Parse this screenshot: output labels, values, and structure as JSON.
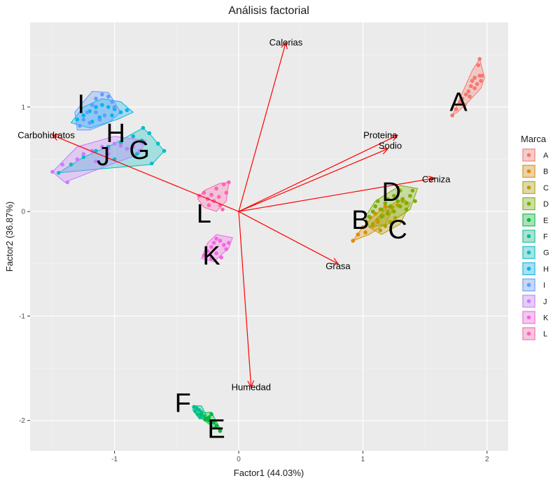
{
  "chart_data": {
    "type": "scatter",
    "title": "Análisis factorial",
    "xlabel": "Factor1 (44.03%)",
    "ylabel": "Factor2 (36.87%)",
    "xlim": [
      -1.68,
      2.17
    ],
    "ylim": [
      -2.29,
      1.81
    ],
    "xticks": [
      -1,
      0,
      1,
      2
    ],
    "yticks": [
      -2,
      -1,
      0,
      1
    ],
    "grid": true,
    "legend": {
      "title": "Marca",
      "position": "right",
      "entries": [
        "A",
        "B",
        "C",
        "D",
        "E",
        "F",
        "G",
        "H",
        "I",
        "J",
        "K",
        "L"
      ]
    },
    "groups": [
      {
        "name": "A",
        "color": "#F8766D",
        "label_at": [
          1.77,
          1.05
        ],
        "hull": [
          [
            1.72,
            0.92
          ],
          [
            1.78,
            1.08
          ],
          [
            1.88,
            1.35
          ],
          [
            1.94,
            1.46
          ],
          [
            1.98,
            1.28
          ],
          [
            1.95,
            1.18
          ],
          [
            1.85,
            1.05
          ],
          [
            1.76,
            0.95
          ]
        ],
        "points": [
          [
            1.72,
            0.92
          ],
          [
            1.75,
            0.98
          ],
          [
            1.78,
            1.05
          ],
          [
            1.8,
            1.08
          ],
          [
            1.83,
            1.12
          ],
          [
            1.85,
            1.15
          ],
          [
            1.87,
            1.2
          ],
          [
            1.88,
            1.25
          ],
          [
            1.9,
            1.28
          ],
          [
            1.92,
            1.22
          ],
          [
            1.94,
            1.3
          ],
          [
            1.95,
            1.25
          ],
          [
            1.96,
            1.3
          ],
          [
            1.93,
            1.4
          ],
          [
            1.94,
            1.46
          ],
          [
            1.86,
            1.1
          ],
          [
            1.82,
            1.02
          ],
          [
            1.9,
            1.18
          ]
        ]
      },
      {
        "name": "B",
        "color": "#DE8C00",
        "label_at": [
          0.98,
          -0.08
        ],
        "hull": [
          [
            0.92,
            -0.28
          ],
          [
            0.98,
            -0.18
          ],
          [
            1.08,
            -0.05
          ],
          [
            1.18,
            0.05
          ],
          [
            1.24,
            0.02
          ],
          [
            1.18,
            -0.12
          ],
          [
            1.05,
            -0.22
          ]
        ],
        "points": [
          [
            0.92,
            -0.28
          ],
          [
            0.96,
            -0.22
          ],
          [
            1.0,
            -0.15
          ],
          [
            1.03,
            -0.1
          ],
          [
            1.06,
            -0.06
          ],
          [
            1.1,
            -0.02
          ],
          [
            1.14,
            0.02
          ],
          [
            1.18,
            0.05
          ],
          [
            1.08,
            -0.14
          ],
          [
            1.12,
            -0.1
          ],
          [
            1.02,
            -0.2
          ],
          [
            1.16,
            -0.04
          ]
        ]
      },
      {
        "name": "C",
        "color": "#B79F00",
        "label_at": [
          1.28,
          -0.17
        ],
        "hull": [
          [
            1.05,
            -0.15
          ],
          [
            1.2,
            0.05
          ],
          [
            1.32,
            0.12
          ],
          [
            1.38,
            0.08
          ],
          [
            1.3,
            -0.12
          ],
          [
            1.15,
            -0.22
          ]
        ],
        "points": [
          [
            1.08,
            -0.12
          ],
          [
            1.12,
            -0.08
          ],
          [
            1.16,
            -0.04
          ],
          [
            1.2,
            0.0
          ],
          [
            1.24,
            0.04
          ],
          [
            1.28,
            0.06
          ],
          [
            1.32,
            0.1
          ],
          [
            1.22,
            -0.1
          ],
          [
            1.18,
            -0.14
          ],
          [
            1.26,
            -0.06
          ],
          [
            1.14,
            -0.18
          ]
        ]
      },
      {
        "name": "D",
        "color": "#7CAE00",
        "label_at": [
          1.23,
          0.19
        ],
        "hull": [
          [
            1.02,
            -0.05
          ],
          [
            1.1,
            0.1
          ],
          [
            1.3,
            0.25
          ],
          [
            1.44,
            0.22
          ],
          [
            1.38,
            0.02
          ],
          [
            1.2,
            -0.12
          ],
          [
            1.05,
            -0.15
          ]
        ],
        "points": [
          [
            1.05,
            -0.05
          ],
          [
            1.08,
            0.0
          ],
          [
            1.1,
            0.05
          ],
          [
            1.12,
            0.1
          ],
          [
            1.15,
            0.02
          ],
          [
            1.18,
            0.08
          ],
          [
            1.2,
            0.12
          ],
          [
            1.22,
            0.05
          ],
          [
            1.25,
            0.15
          ],
          [
            1.28,
            0.1
          ],
          [
            1.3,
            0.2
          ],
          [
            1.32,
            0.12
          ],
          [
            1.35,
            0.08
          ],
          [
            1.38,
            0.15
          ],
          [
            1.4,
            0.2
          ],
          [
            1.42,
            0.1
          ],
          [
            1.15,
            -0.05
          ],
          [
            1.2,
            -0.02
          ],
          [
            1.25,
            0.0
          ],
          [
            1.3,
            0.05
          ],
          [
            1.35,
            0.02
          ]
        ]
      },
      {
        "name": "E",
        "color": "#00BA38",
        "label_at": [
          -0.18,
          -2.08
        ],
        "hull": [
          [
            -0.32,
            -1.93
          ],
          [
            -0.22,
            -1.92
          ],
          [
            -0.14,
            -2.1
          ],
          [
            -0.22,
            -2.05
          ],
          [
            -0.3,
            -1.98
          ]
        ],
        "points": [
          [
            -0.3,
            -1.95
          ],
          [
            -0.28,
            -1.96
          ],
          [
            -0.26,
            -1.98
          ],
          [
            -0.24,
            -1.97
          ],
          [
            -0.22,
            -1.94
          ],
          [
            -0.24,
            -2.0
          ],
          [
            -0.2,
            -2.02
          ],
          [
            -0.18,
            -2.05
          ],
          [
            -0.15,
            -2.1
          ],
          [
            -0.27,
            -1.99
          ]
        ]
      },
      {
        "name": "F",
        "color": "#00C08B",
        "label_at": [
          -0.45,
          -1.83
        ],
        "hull": [
          [
            -0.36,
            -1.86
          ],
          [
            -0.3,
            -1.86
          ],
          [
            -0.26,
            -1.95
          ],
          [
            -0.32,
            -1.98
          ],
          [
            -0.37,
            -1.9
          ]
        ],
        "points": [
          [
            -0.36,
            -1.87
          ],
          [
            -0.34,
            -1.88
          ],
          [
            -0.32,
            -1.9
          ],
          [
            -0.3,
            -1.92
          ],
          [
            -0.33,
            -1.94
          ],
          [
            -0.29,
            -1.96
          ],
          [
            -0.31,
            -1.97
          ],
          [
            -0.35,
            -1.91
          ]
        ]
      },
      {
        "name": "G",
        "color": "#00BFC4",
        "label_at": [
          -0.8,
          0.59
        ],
        "hull": [
          [
            -1.45,
            0.37
          ],
          [
            -1.25,
            0.52
          ],
          [
            -1.0,
            0.65
          ],
          [
            -0.77,
            0.8
          ],
          [
            -0.7,
            0.72
          ],
          [
            -0.6,
            0.58
          ],
          [
            -0.7,
            0.45
          ],
          [
            -1.0,
            0.42
          ]
        ],
        "points": [
          [
            -1.45,
            0.37
          ],
          [
            -1.35,
            0.45
          ],
          [
            -1.25,
            0.52
          ],
          [
            -1.15,
            0.58
          ],
          [
            -1.05,
            0.62
          ],
          [
            -0.95,
            0.66
          ],
          [
            -0.85,
            0.72
          ],
          [
            -0.77,
            0.8
          ],
          [
            -0.72,
            0.75
          ],
          [
            -0.65,
            0.65
          ],
          [
            -0.6,
            0.58
          ],
          [
            -0.7,
            0.46
          ],
          [
            -0.82,
            0.55
          ],
          [
            -0.9,
            0.6
          ],
          [
            -1.0,
            0.5
          ],
          [
            -0.78,
            0.68
          ]
        ]
      },
      {
        "name": "H",
        "color": "#00B4F0",
        "label_at": [
          -0.99,
          0.75
        ],
        "hull": [
          [
            -1.35,
            0.85
          ],
          [
            -1.25,
            1.0
          ],
          [
            -1.1,
            1.08
          ],
          [
            -0.95,
            1.05
          ],
          [
            -0.85,
            0.95
          ],
          [
            -0.98,
            0.88
          ],
          [
            -1.2,
            0.8
          ]
        ],
        "points": [
          [
            -1.3,
            0.88
          ],
          [
            -1.25,
            0.92
          ],
          [
            -1.2,
            0.96
          ],
          [
            -1.15,
            1.0
          ],
          [
            -1.1,
            1.02
          ],
          [
            -1.05,
            1.0
          ],
          [
            -1.0,
            0.98
          ],
          [
            -0.95,
            0.95
          ],
          [
            -0.9,
            0.97
          ],
          [
            -1.12,
            0.9
          ],
          [
            -1.18,
            0.86
          ],
          [
            -1.02,
            0.92
          ]
        ]
      },
      {
        "name": "I",
        "color": "#619CFF",
        "label_at": [
          -1.27,
          1.03
        ],
        "hull": [
          [
            -1.3,
            0.78
          ],
          [
            -1.32,
            0.95
          ],
          [
            -1.18,
            1.15
          ],
          [
            -1.05,
            1.14
          ],
          [
            -0.95,
            0.95
          ],
          [
            -1.05,
            0.85
          ],
          [
            -1.2,
            0.78
          ]
        ],
        "points": [
          [
            -1.28,
            0.82
          ],
          [
            -1.25,
            0.88
          ],
          [
            -1.22,
            0.95
          ],
          [
            -1.18,
            1.02
          ],
          [
            -1.15,
            1.08
          ],
          [
            -1.1,
            1.12
          ],
          [
            -1.05,
            1.1
          ],
          [
            -1.0,
            1.0
          ],
          [
            -1.08,
            0.92
          ],
          [
            -1.12,
            0.88
          ],
          [
            -1.2,
            0.85
          ],
          [
            -1.15,
            0.95
          ],
          [
            -1.02,
            1.05
          ]
        ]
      },
      {
        "name": "J",
        "color": "#C77CFF",
        "label_at": [
          -1.09,
          0.53
        ],
        "hull": [
          [
            -1.5,
            0.38
          ],
          [
            -1.4,
            0.28
          ],
          [
            -1.1,
            0.42
          ],
          [
            -0.8,
            0.55
          ],
          [
            -0.75,
            0.68
          ],
          [
            -1.0,
            0.72
          ],
          [
            -1.3,
            0.62
          ]
        ],
        "points": [
          [
            -1.5,
            0.38
          ],
          [
            -1.42,
            0.45
          ],
          [
            -1.38,
            0.28
          ],
          [
            -1.3,
            0.5
          ],
          [
            -1.25,
            0.55
          ],
          [
            -1.18,
            0.58
          ],
          [
            -1.1,
            0.62
          ],
          [
            -1.05,
            0.6
          ],
          [
            -1.0,
            0.65
          ],
          [
            -0.95,
            0.63
          ],
          [
            -0.9,
            0.6
          ],
          [
            -0.85,
            0.62
          ],
          [
            -0.8,
            0.58
          ],
          [
            -0.78,
            0.66
          ],
          [
            -1.15,
            0.48
          ],
          [
            -1.05,
            0.55
          ]
        ]
      },
      {
        "name": "K",
        "color": "#F564E3",
        "label_at": [
          -0.22,
          -0.42
        ],
        "hull": [
          [
            -0.3,
            -0.45
          ],
          [
            -0.25,
            -0.3
          ],
          [
            -0.18,
            -0.22
          ],
          [
            -0.05,
            -0.25
          ],
          [
            -0.08,
            -0.35
          ],
          [
            -0.2,
            -0.48
          ]
        ],
        "points": [
          [
            -0.28,
            -0.42
          ],
          [
            -0.25,
            -0.38
          ],
          [
            -0.22,
            -0.34
          ],
          [
            -0.2,
            -0.3
          ],
          [
            -0.18,
            -0.26
          ],
          [
            -0.15,
            -0.28
          ],
          [
            -0.12,
            -0.32
          ],
          [
            -0.1,
            -0.36
          ],
          [
            -0.08,
            -0.3
          ],
          [
            -0.18,
            -0.4
          ],
          [
            -0.14,
            -0.44
          ],
          [
            -0.22,
            -0.45
          ]
        ]
      },
      {
        "name": "L",
        "color": "#FF64B0",
        "label_at": [
          -0.28,
          -0.02
        ],
        "hull": [
          [
            -0.33,
            0.12
          ],
          [
            -0.28,
            0.2
          ],
          [
            -0.15,
            0.27
          ],
          [
            -0.08,
            0.28
          ],
          [
            -0.1,
            0.1
          ],
          [
            -0.18,
            0.0
          ],
          [
            -0.28,
            0.04
          ]
        ],
        "points": [
          [
            -0.32,
            0.15
          ],
          [
            -0.28,
            0.18
          ],
          [
            -0.25,
            0.12
          ],
          [
            -0.22,
            0.16
          ],
          [
            -0.2,
            0.1
          ],
          [
            -0.18,
            0.22
          ],
          [
            -0.16,
            0.14
          ],
          [
            -0.15,
            0.06
          ],
          [
            -0.12,
            0.26
          ],
          [
            -0.1,
            0.18
          ],
          [
            -0.08,
            0.28
          ],
          [
            -0.13,
            0.02
          ],
          [
            -0.24,
            0.06
          ]
        ]
      }
    ],
    "vectors": [
      {
        "name": "Calorias",
        "x": 0.38,
        "y": 1.62,
        "label_at": [
          0.38,
          1.62
        ]
      },
      {
        "name": "Proteina",
        "x": 1.28,
        "y": 0.73,
        "label_at": [
          1.14,
          0.73
        ]
      },
      {
        "name": "Sodio",
        "x": 1.2,
        "y": 0.6,
        "label_at": [
          1.22,
          0.63
        ]
      },
      {
        "name": "Ceniza",
        "x": 1.58,
        "y": 0.32,
        "label_at": [
          1.59,
          0.31
        ]
      },
      {
        "name": "Grasa",
        "x": 0.8,
        "y": -0.5,
        "label_at": [
          0.8,
          -0.52
        ]
      },
      {
        "name": "Humedad",
        "x": 0.1,
        "y": -1.68,
        "label_at": [
          0.1,
          -1.68
        ]
      },
      {
        "name": "Carbohidratos",
        "x": -1.5,
        "y": 0.73,
        "label_at": [
          -1.55,
          0.73
        ]
      }
    ]
  }
}
